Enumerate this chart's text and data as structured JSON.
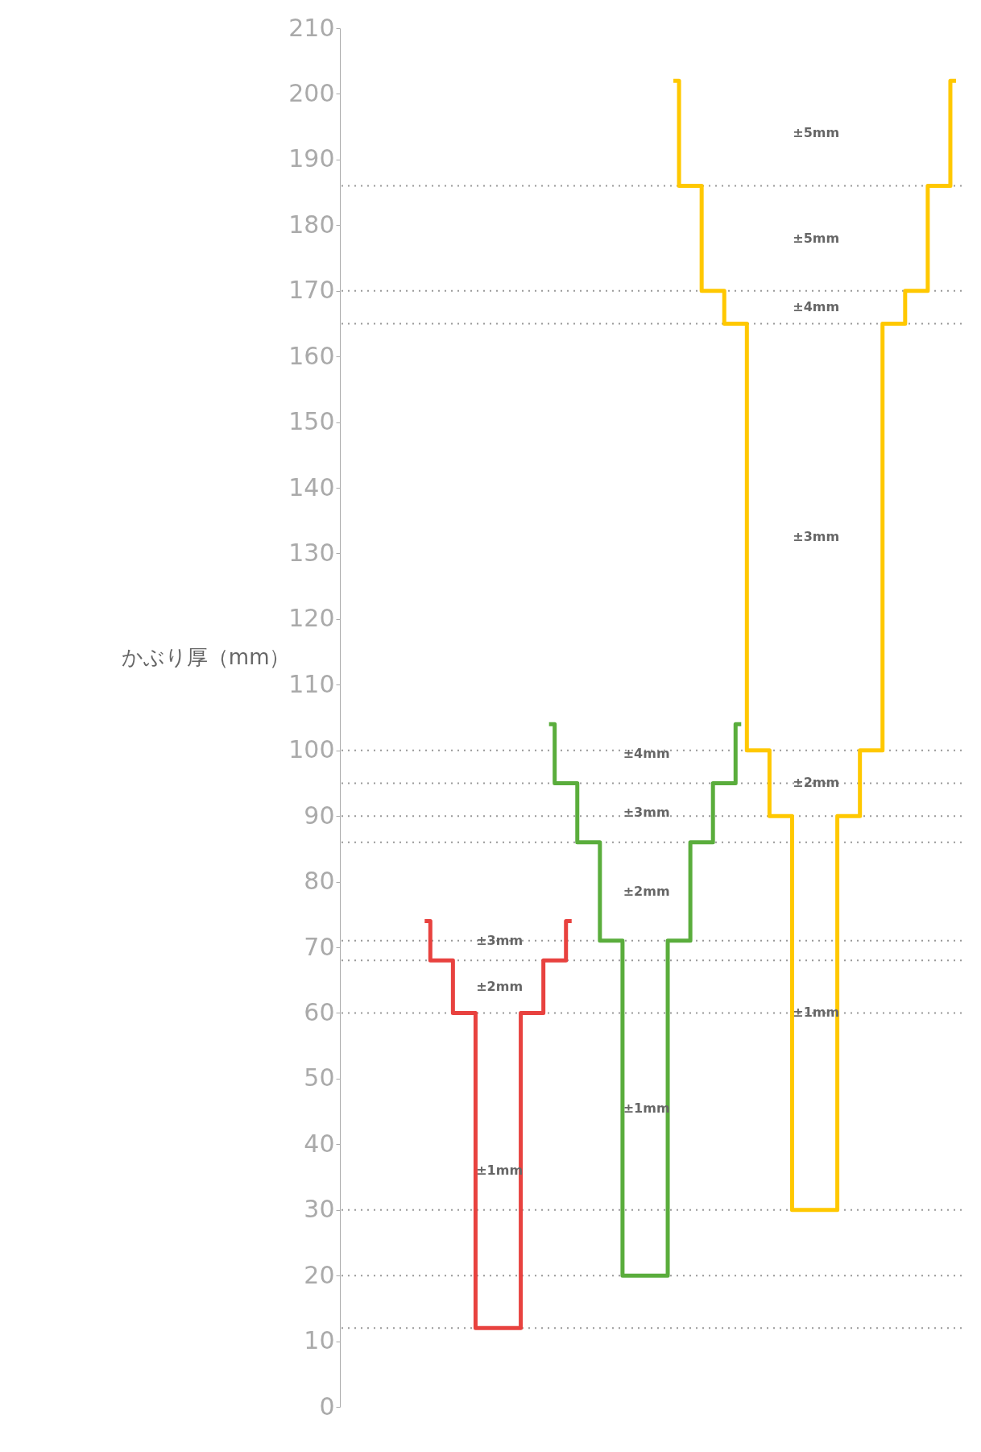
{
  "chart_data": {
    "type": "step",
    "ylabel": "かぶり厚（mm）",
    "ylim": [
      0,
      210
    ],
    "yticks": [
      0,
      10,
      20,
      30,
      40,
      50,
      60,
      70,
      80,
      90,
      100,
      110,
      120,
      130,
      140,
      150,
      160,
      170,
      180,
      190,
      200,
      210
    ],
    "tick_labels": "y",
    "grid": false,
    "line_style": "solid",
    "marker": "none",
    "categories": [
      null,
      null,
      null,
      null,
      null,
      null,
      null,
      null,
      null,
      null,
      null,
      null,
      null,
      null,
      null,
      null,
      null,
      null,
      null,
      null,
      null,
      null,
      null,
      null,
      null,
      null,
      null,
      null,
      null,
      null,
      null,
      null,
      null,
      null,
      null,
      null,
      null,
      null,
      null,
      null,
      null,
      null,
      null,
      null,
      null,
      null,
      null,
      null,
      null,
      null,
      null,
      null,
      null,
      null,
      null
    ],
    "series": [
      {
        "color": "#e8423f",
        "values": [
          null,
          null,
          null,
          null,
          null,
          null,
          null,
          74,
          68,
          68,
          60,
          60,
          12,
          12,
          12,
          12,
          60,
          60,
          68,
          68,
          74,
          null,
          null,
          null,
          null,
          null,
          null,
          null,
          null,
          null,
          null,
          null,
          null,
          null,
          null,
          null,
          null,
          null,
          null,
          null,
          null,
          null,
          null,
          null,
          null,
          null,
          null,
          null,
          null,
          null,
          null,
          null,
          null,
          null,
          null
        ]
      },
      {
        "color": "#5aad3c",
        "values": [
          null,
          null,
          null,
          null,
          null,
          null,
          null,
          null,
          null,
          null,
          null,
          null,
          null,
          null,
          null,
          null,
          null,
          null,
          104,
          95,
          95,
          86,
          86,
          71,
          71,
          20,
          20,
          20,
          20,
          71,
          71,
          86,
          86,
          95,
          95,
          104,
          null,
          null,
          null,
          null,
          null,
          null,
          null,
          null,
          null,
          null,
          null,
          null,
          null,
          null,
          null,
          null,
          null,
          null,
          null
        ]
      },
      {
        "color": "#ffc800",
        "values": [
          null,
          null,
          null,
          null,
          null,
          null,
          null,
          null,
          null,
          null,
          null,
          null,
          null,
          null,
          null,
          null,
          null,
          null,
          null,
          null,
          null,
          null,
          null,
          null,
          null,
          null,
          null,
          null,
          null,
          202,
          186,
          186,
          170,
          170,
          165,
          165,
          100,
          100,
          90,
          90,
          30,
          30,
          30,
          30,
          90,
          90,
          100,
          100,
          165,
          165,
          170,
          170,
          186,
          186,
          202
        ]
      }
    ],
    "ref_lines": [
      {
        "axis": "y",
        "value": 186,
        "color": "#999999",
        "line_style": "dotted"
      },
      {
        "axis": "y",
        "value": 170,
        "color": "#999999",
        "line_style": "dotted"
      },
      {
        "axis": "y",
        "value": 165,
        "color": "#999999",
        "line_style": "dotted"
      },
      {
        "axis": "y",
        "value": 100,
        "color": "#999999",
        "line_style": "dotted"
      },
      {
        "axis": "y",
        "value": 95,
        "color": "#999999",
        "line_style": "dotted"
      },
      {
        "axis": "y",
        "value": 90,
        "color": "#999999",
        "line_style": "dotted"
      },
      {
        "axis": "y",
        "value": 86,
        "color": "#999999",
        "line_style": "dotted"
      },
      {
        "axis": "y",
        "value": 71,
        "color": "#999999",
        "line_style": "dotted"
      },
      {
        "axis": "y",
        "value": 68,
        "color": "#999999",
        "line_style": "dotted"
      },
      {
        "axis": "y",
        "value": 60,
        "color": "#999999",
        "line_style": "dotted"
      },
      {
        "axis": "y",
        "value": 30,
        "color": "#999999",
        "line_style": "dotted"
      },
      {
        "axis": "y",
        "value": 20,
        "color": "#999999",
        "line_style": "dotted"
      },
      {
        "axis": "y",
        "value": 12,
        "color": "#999999",
        "line_style": "dotted"
      }
    ],
    "annotations": [
      "±3mm",
      "±2mm",
      "±1mm",
      "±4mm",
      "±3mm",
      "±2mm",
      "±1mm",
      "±5mm",
      "±5mm",
      "±4mm",
      "±3mm",
      "±2mm",
      "±1mm"
    ]
  }
}
